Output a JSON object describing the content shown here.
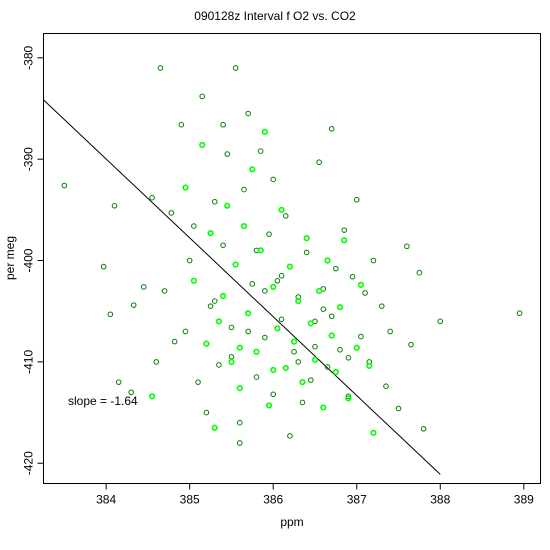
{
  "chart_data": {
    "type": "scatter",
    "title": "090128z   Interval f O2 vs. CO2",
    "xlabel": "ppm",
    "ylabel": "per meg",
    "xlim": [
      383.25,
      389.2
    ],
    "ylim": [
      -422.0,
      -377.6
    ],
    "x_ticks": [
      384,
      385,
      386,
      387,
      388,
      389
    ],
    "y_ticks": [
      -380,
      -390,
      -400,
      -410,
      -420
    ],
    "grid": false,
    "annotation": "slope =  -1.64",
    "fit_line": {
      "slope": -1.64,
      "x_start": 383.25,
      "y_start": -384.15,
      "x_end": 388.0,
      "y_end": -421.1
    },
    "series": [
      {
        "color": "#008000",
        "marker": "open-circle",
        "points": [
          [
            383.5,
            -392.6
          ],
          [
            383.97,
            -400.6
          ],
          [
            384.05,
            -405.3
          ],
          [
            384.1,
            -394.6
          ],
          [
            384.15,
            -412.0
          ],
          [
            384.3,
            -413.0
          ],
          [
            384.33,
            -404.4
          ],
          [
            384.45,
            -402.6
          ],
          [
            384.55,
            -393.8
          ],
          [
            384.6,
            -410.0
          ],
          [
            384.65,
            -381.0
          ],
          [
            384.7,
            -403.0
          ],
          [
            384.78,
            -395.3
          ],
          [
            384.82,
            -408.0
          ],
          [
            384.9,
            -386.6
          ],
          [
            384.95,
            -407.0
          ],
          [
            385.0,
            -400.0
          ],
          [
            385.05,
            -396.6
          ],
          [
            385.1,
            -412.0
          ],
          [
            385.15,
            -383.8
          ],
          [
            385.2,
            -415.0
          ],
          [
            385.25,
            -404.5
          ],
          [
            385.3,
            -394.2
          ],
          [
            385.35,
            -410.3
          ],
          [
            385.4,
            -386.6
          ],
          [
            385.45,
            -389.5
          ],
          [
            385.5,
            -406.6
          ],
          [
            385.55,
            -381.0
          ],
          [
            385.6,
            -416.0
          ],
          [
            385.65,
            -393.0
          ],
          [
            385.7,
            -385.5
          ],
          [
            385.75,
            -402.3
          ],
          [
            385.8,
            -411.5
          ],
          [
            385.85,
            -389.2
          ],
          [
            385.9,
            -407.6
          ],
          [
            385.95,
            -397.4
          ],
          [
            386.0,
            -413.2
          ],
          [
            386.05,
            -402.0
          ],
          [
            386.1,
            -405.8
          ],
          [
            386.15,
            -395.6
          ],
          [
            386.2,
            -417.3
          ],
          [
            386.25,
            -409.0
          ],
          [
            386.3,
            -403.6
          ],
          [
            386.35,
            -414.0
          ],
          [
            386.4,
            -399.2
          ],
          [
            386.45,
            -411.8
          ],
          [
            386.5,
            -406.0
          ],
          [
            386.55,
            -390.3
          ],
          [
            386.6,
            -404.8
          ],
          [
            386.65,
            -410.5
          ],
          [
            386.7,
            -387.0
          ],
          [
            386.75,
            -400.8
          ],
          [
            386.8,
            -408.8
          ],
          [
            386.85,
            -397.0
          ],
          [
            386.9,
            -413.4
          ],
          [
            386.95,
            -401.6
          ],
          [
            387.0,
            -394.0
          ],
          [
            387.05,
            -407.5
          ],
          [
            387.1,
            -403.2
          ],
          [
            387.15,
            -410.0
          ],
          [
            387.2,
            -400.0
          ],
          [
            387.3,
            -404.5
          ],
          [
            387.35,
            -412.4
          ],
          [
            387.4,
            -407.0
          ],
          [
            387.5,
            -414.6
          ],
          [
            387.6,
            -398.6
          ],
          [
            387.65,
            -408.3
          ],
          [
            387.75,
            -401.2
          ],
          [
            387.8,
            -416.6
          ],
          [
            388.0,
            -406.0
          ],
          [
            388.95,
            -405.2
          ],
          [
            385.3,
            -404.0
          ],
          [
            385.5,
            -409.5
          ],
          [
            385.7,
            -407.0
          ],
          [
            385.9,
            -403.0
          ],
          [
            386.1,
            -401.5
          ],
          [
            386.3,
            -410.0
          ],
          [
            386.5,
            -408.5
          ],
          [
            386.7,
            -405.5
          ],
          [
            385.8,
            -399.0
          ],
          [
            386.0,
            -392.0
          ],
          [
            385.4,
            -398.5
          ],
          [
            385.6,
            -418.0
          ],
          [
            386.6,
            -402.8
          ],
          [
            386.9,
            -409.6
          ]
        ]
      },
      {
        "color": "#00ff00",
        "marker": "open-circle",
        "points": [
          [
            384.55,
            -413.4
          ],
          [
            384.95,
            -392.8
          ],
          [
            385.05,
            -402.0
          ],
          [
            385.15,
            -388.6
          ],
          [
            385.2,
            -408.2
          ],
          [
            385.25,
            -397.3
          ],
          [
            385.3,
            -416.5
          ],
          [
            385.4,
            -403.5
          ],
          [
            385.45,
            -394.6
          ],
          [
            385.5,
            -410.0
          ],
          [
            385.55,
            -400.4
          ],
          [
            385.6,
            -412.6
          ],
          [
            385.65,
            -396.6
          ],
          [
            385.7,
            -405.2
          ],
          [
            385.75,
            -391.0
          ],
          [
            385.8,
            -409.0
          ],
          [
            385.85,
            -399.0
          ],
          [
            385.9,
            -387.3
          ],
          [
            385.95,
            -414.3
          ],
          [
            386.0,
            -402.6
          ],
          [
            386.05,
            -406.7
          ],
          [
            386.1,
            -395.0
          ],
          [
            386.15,
            -410.6
          ],
          [
            386.2,
            -400.6
          ],
          [
            386.25,
            -408.0
          ],
          [
            386.3,
            -404.0
          ],
          [
            386.35,
            -412.0
          ],
          [
            386.4,
            -397.8
          ],
          [
            386.45,
            -406.2
          ],
          [
            386.5,
            -409.8
          ],
          [
            386.55,
            -403.0
          ],
          [
            386.6,
            -414.5
          ],
          [
            386.65,
            -400.0
          ],
          [
            386.7,
            -407.4
          ],
          [
            386.75,
            -411.0
          ],
          [
            386.8,
            -404.6
          ],
          [
            386.85,
            -398.0
          ],
          [
            386.9,
            -413.6
          ],
          [
            387.0,
            -408.6
          ],
          [
            387.05,
            -402.4
          ],
          [
            387.15,
            -410.4
          ],
          [
            387.2,
            -417.0
          ],
          [
            385.35,
            -406.0
          ],
          [
            385.6,
            -408.6
          ],
          [
            386.0,
            -410.8
          ]
        ]
      }
    ]
  }
}
